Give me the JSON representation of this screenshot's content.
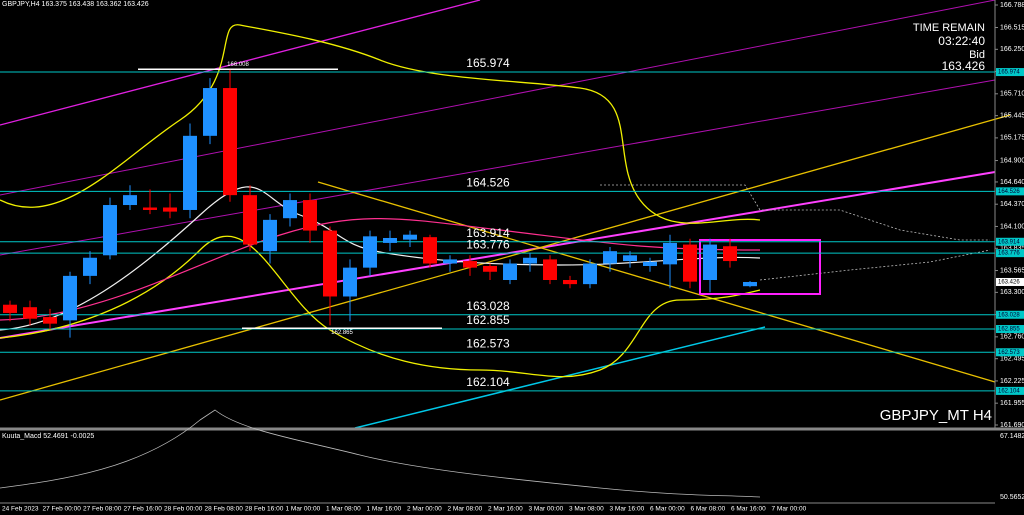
{
  "chart_data": {
    "type": "candlestick",
    "header": "GBPJPY,H4 163.375 163.438 163.362 163.426",
    "watermark": "GBPJPY_MT H4",
    "time_remain_label": "TIME REMAIN",
    "time_remain": "03:22:40",
    "bid_label": "Bid",
    "bid": 163.426,
    "bull_color": "#1e90ff",
    "bear_color": "#ff0000",
    "ylim": [
      161.69,
      166.788
    ],
    "yticks": [
      166.788,
      166.515,
      {
        "value": 166.25,
        "label": "166.250"
      },
      {
        "value": 165.98,
        "label": "165.980"
      },
      {
        "value": 165.71,
        "label": "165.710"
      },
      165.445,
      165.175,
      {
        "value": 164.9,
        "label": "164.900"
      },
      {
        "value": 164.64,
        "label": "164.640"
      },
      {
        "value": 164.37,
        "label": "164.370"
      },
      {
        "value": 164.1,
        "label": "164.100"
      },
      163.835,
      163.565,
      {
        "value": 163.3,
        "label": "163.300"
      },
      {
        "value": 163.03,
        "label": "163.030"
      },
      {
        "value": 162.76,
        "label": "162.760"
      },
      162.495,
      162.225,
      161.955,
      {
        "value": 161.69,
        "label": "161.690"
      }
    ],
    "levels": [
      165.974,
      164.526,
      163.914,
      163.776,
      163.028,
      162.855,
      162.573,
      162.104
    ],
    "level_color": "#00c8c8",
    "price_marks": [
      166.008,
      162.865
    ],
    "time_labels": [
      "24 Feb 2023",
      "27 Feb 00:00",
      "27 Feb 08:00",
      "27 Feb 16:00",
      "28 Feb 00:00",
      "28 Feb 08:00",
      "28 Feb 16:00",
      "1 Mar 00:00",
      "1 Mar 08:00",
      "1 Mar 16:00",
      "2 Mar 00:00",
      "2 Mar 08:00",
      "2 Mar 16:00",
      "3 Mar 00:00",
      "3 Mar 08:00",
      "3 Mar 16:00",
      "6 Mar 00:00",
      "6 Mar 08:00",
      "6 Mar 16:00",
      "7 Mar 00:00"
    ],
    "open": [
      163.15,
      163.12,
      163.0,
      162.96,
      163.5,
      163.75,
      164.36,
      164.33,
      164.33,
      164.3,
      165.2,
      165.78,
      164.48,
      163.8,
      164.2,
      164.42,
      164.05,
      163.25,
      163.6,
      163.9,
      163.94,
      163.97,
      163.65,
      163.68,
      163.62,
      163.45,
      163.65,
      163.7,
      163.45,
      163.4,
      163.65,
      163.68,
      163.62,
      163.64,
      163.88,
      163.45,
      163.86,
      163.375
    ],
    "high": [
      163.2,
      163.2,
      163.1,
      163.55,
      163.8,
      164.45,
      164.6,
      164.55,
      164.5,
      165.35,
      165.9,
      166.0,
      164.6,
      164.25,
      164.5,
      164.5,
      164.1,
      163.7,
      164.05,
      164.05,
      164.05,
      164.0,
      163.75,
      163.75,
      163.65,
      163.7,
      163.78,
      163.75,
      163.5,
      163.7,
      163.85,
      163.8,
      163.72,
      164.0,
      163.95,
      163.95,
      163.95,
      163.438
    ],
    "low": [
      162.95,
      162.9,
      162.85,
      162.75,
      163.4,
      163.7,
      164.3,
      164.25,
      164.2,
      164.2,
      165.1,
      164.4,
      163.8,
      163.65,
      164.1,
      163.9,
      162.9,
      162.95,
      163.5,
      163.8,
      163.85,
      163.6,
      163.55,
      163.5,
      163.45,
      163.4,
      163.55,
      163.4,
      163.35,
      163.35,
      163.55,
      163.6,
      163.55,
      163.35,
      163.35,
      163.3,
      163.6,
      163.362
    ],
    "close": [
      163.05,
      162.98,
      162.92,
      163.5,
      163.72,
      164.36,
      164.48,
      164.3,
      164.28,
      165.2,
      165.78,
      164.48,
      163.88,
      164.18,
      164.42,
      164.05,
      163.25,
      163.6,
      163.98,
      163.96,
      164.0,
      163.65,
      163.7,
      163.6,
      163.55,
      163.65,
      163.72,
      163.45,
      163.4,
      163.65,
      163.8,
      163.75,
      163.67,
      163.9,
      163.43,
      163.88,
      163.68,
      163.426
    ],
    "indicator": {
      "name": "Kuuta_Macd 52.4691 -0.0025",
      "ylim": [
        50.5652,
        67.1482
      ]
    }
  }
}
